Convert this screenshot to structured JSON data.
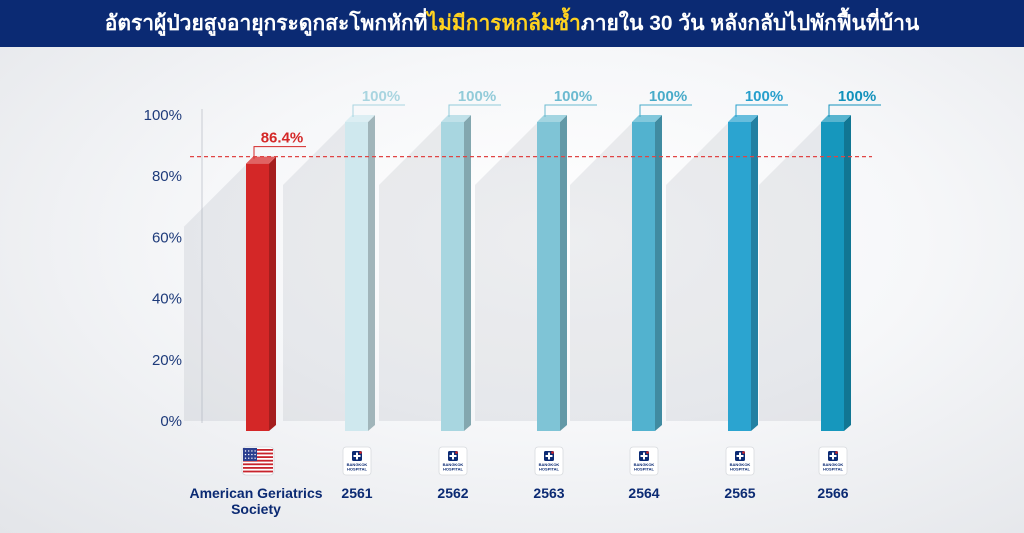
{
  "header": {
    "title_before": "อัตราผู้ป่วยสูงอายุกระดูกสะโพกหักที่",
    "title_highlight": "ไม่มีการหกล้มซ้ำ",
    "title_after": "ภายใน 30 วัน หลังกลับไปพักฟื้นที่บ้าน"
  },
  "logo": {
    "line1": "BANGKOK",
    "line2": "HOSPITAL"
  },
  "chart_data": {
    "type": "bar",
    "categories": [
      "American Geriatrics Society",
      "2561",
      "2562",
      "2563",
      "2564",
      "2565",
      "2566"
    ],
    "category_lines": [
      [
        "American Geriatrics",
        "Society"
      ],
      [
        "2561"
      ],
      [
        "2562"
      ],
      [
        "2563"
      ],
      [
        "2564"
      ],
      [
        "2565"
      ],
      [
        "2566"
      ]
    ],
    "values": [
      86.4,
      100,
      100,
      100,
      100,
      100,
      100
    ],
    "value_labels": [
      "86.4%",
      "100%",
      "100%",
      "100%",
      "100%",
      "100%",
      "100%"
    ],
    "bar_colors": [
      "#d42727",
      "#cfe8ee",
      "#a8d6e0",
      "#7fc4d6",
      "#52b2cf",
      "#2ba4d0",
      "#1697bd"
    ],
    "label_colors": [
      "#d42727",
      "#a9d5e0",
      "#92cbd9",
      "#6cbad0",
      "#48abc9",
      "#279fcc",
      "#1291bb"
    ],
    "category_icons": [
      "us-flag-icon",
      "bangkok-hospital-logo",
      "bangkok-hospital-logo",
      "bangkok-hospital-logo",
      "bangkok-hospital-logo",
      "bangkok-hospital-logo",
      "bangkok-hospital-logo"
    ],
    "yticks": [
      "0%",
      "20%",
      "40%",
      "60%",
      "80%",
      "100%"
    ],
    "ylim": [
      0,
      100
    ],
    "reference_line": 86.4,
    "reference_line_color": "#e04545",
    "xlabel": "",
    "ylabel": "",
    "grid": false,
    "legend": false
  }
}
